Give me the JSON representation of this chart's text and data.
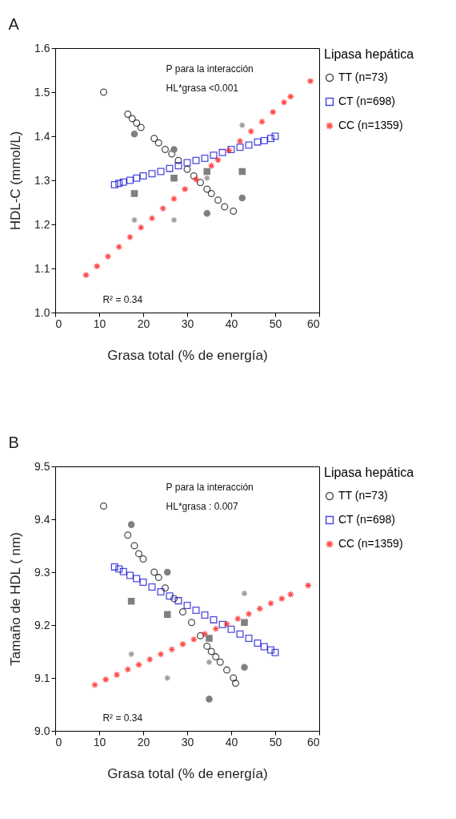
{
  "chart_data": [
    {
      "type": "scatter",
      "title": "A",
      "xlabel": "Grasa total (% de energía)",
      "ylabel": "HDL-C (mmol/L)",
      "legend_title": "Lipasa hepática",
      "annotations": [
        "P para la interacción",
        "HL*grasa <0.001",
        "R² = 0.34"
      ],
      "xlim": [
        0,
        60
      ],
      "xticks": [
        0,
        10,
        20,
        30,
        40,
        50,
        60
      ],
      "ylim": [
        1.0,
        1.6
      ],
      "yticks": [
        {
          "value": 1.0,
          "label": "1.0"
        },
        1.1,
        1.2,
        1.3,
        1.4,
        1.5,
        1.6
      ],
      "grid": false,
      "legend": "right",
      "series": [
        {
          "name": "TT (n=73)",
          "color": "#000000",
          "marker": "circle",
          "x": [
            11,
            16.5,
            17.5,
            18.5,
            19.5,
            22.5,
            23.5,
            25,
            26.5,
            28,
            30,
            31.5,
            33,
            34.5,
            35.5,
            37,
            38.5,
            40.5
          ],
          "values": [
            1.5,
            1.45,
            1.44,
            1.43,
            1.42,
            1.395,
            1.385,
            1.37,
            1.36,
            1.345,
            1.325,
            1.31,
            1.295,
            1.28,
            1.27,
            1.255,
            1.24,
            1.23
          ]
        },
        {
          "name": "CT (n=698)",
          "color": "#0000cc",
          "marker": "square",
          "x": [
            13.5,
            14.5,
            15.5,
            17,
            18.5,
            20,
            22,
            24,
            26,
            28,
            30,
            32,
            34,
            36,
            38,
            40,
            42,
            44,
            46,
            47.5,
            49,
            50
          ],
          "values": [
            1.29,
            1.293,
            1.296,
            1.3,
            1.305,
            1.31,
            1.315,
            1.32,
            1.327,
            1.333,
            1.34,
            1.345,
            1.35,
            1.357,
            1.363,
            1.37,
            1.375,
            1.38,
            1.387,
            1.39,
            1.395,
            1.4
          ]
        },
        {
          "name": "CC (n=1359)",
          "color": "#ff0000",
          "marker": "cross",
          "x": [
            7,
            9.5,
            12,
            14.5,
            17,
            19.5,
            22,
            24.5,
            27,
            29.5,
            32,
            35.5,
            37,
            39.5,
            42,
            44.5,
            47,
            49.5,
            52,
            53.5,
            58
          ],
          "values": [
            1.085,
            1.105,
            1.127,
            1.149,
            1.171,
            1.193,
            1.214,
            1.236,
            1.258,
            1.28,
            1.302,
            1.333,
            1.346,
            1.368,
            1.389,
            1.411,
            1.433,
            1.455,
            1.477,
            1.49,
            1.525
          ]
        },
        {
          "color": "#808080",
          "marker": "circle",
          "x": [
            18,
            27,
            34.5,
            42.5
          ],
          "values": [
            1.405,
            1.37,
            1.225,
            1.26
          ]
        },
        {
          "color": "#808080",
          "marker": "square",
          "x": [
            18,
            27,
            34.5,
            42.5
          ],
          "values": [
            1.27,
            1.305,
            1.32,
            1.32
          ]
        },
        {
          "color": "#a0a0a0",
          "marker": "cross",
          "x": [
            18,
            27,
            34.5,
            42.5
          ],
          "values": [
            1.21,
            1.21,
            1.305,
            1.425
          ]
        }
      ]
    },
    {
      "type": "scatter",
      "title": "B",
      "xlabel": "Grasa total (% de energía)",
      "ylabel": "Tamaño de HDL ( nm)",
      "legend_title": "Lipasa hepática",
      "annotations": [
        "P para la interacción",
        "HL*grasa : 0.007",
        "R² = 0.34"
      ],
      "xlim": [
        0,
        60
      ],
      "xticks": [
        0,
        10,
        20,
        30,
        40,
        50,
        60
      ],
      "ylim": [
        9.0,
        9.5
      ],
      "yticks": [
        {
          "value": 9.0,
          "label": "9.0"
        },
        9.1,
        9.2,
        9.3,
        9.4,
        9.5
      ],
      "grid": false,
      "legend": "right",
      "series": [
        {
          "name": "TT (n=73)",
          "color": "#000000",
          "marker": "circle",
          "x": [
            11,
            16.5,
            18,
            19,
            20,
            22.5,
            23.5,
            25,
            27,
            29,
            31,
            33,
            34.5,
            35.5,
            36.5,
            37.5,
            39,
            40.5,
            41
          ],
          "values": [
            9.425,
            9.37,
            9.35,
            9.335,
            9.325,
            9.3,
            9.29,
            9.27,
            9.25,
            9.225,
            9.205,
            9.18,
            9.16,
            9.15,
            9.14,
            9.13,
            9.115,
            9.1,
            9.09
          ]
        },
        {
          "name": "CT (n=698)",
          "color": "#0000cc",
          "marker": "square",
          "x": [
            13.5,
            14.5,
            15.5,
            17,
            18.5,
            20,
            22,
            24,
            26,
            28,
            30,
            32,
            34,
            36,
            38,
            40,
            42,
            44,
            46,
            47.5,
            49,
            50
          ],
          "values": [
            9.31,
            9.306,
            9.301,
            9.294,
            9.288,
            9.281,
            9.272,
            9.263,
            9.255,
            9.246,
            9.237,
            9.228,
            9.219,
            9.21,
            9.201,
            9.192,
            9.183,
            9.175,
            9.166,
            9.159,
            9.153,
            9.148
          ]
        },
        {
          "name": "CC (n=1359)",
          "color": "#ff0000",
          "marker": "cross",
          "x": [
            9,
            11.5,
            14,
            16.5,
            19,
            21.5,
            24,
            26.5,
            29,
            31.5,
            34,
            36.5,
            39,
            41.5,
            44,
            46.5,
            49,
            51.5,
            53.5,
            57.5
          ],
          "values": [
            9.087,
            9.097,
            9.106,
            9.116,
            9.125,
            9.135,
            9.145,
            9.154,
            9.164,
            9.173,
            9.183,
            9.193,
            9.202,
            9.212,
            9.221,
            9.231,
            9.241,
            9.25,
            9.258,
            9.275
          ]
        },
        {
          "color": "#808080",
          "marker": "circle",
          "x": [
            17.3,
            25.5,
            35,
            43
          ],
          "values": [
            9.39,
            9.3,
            9.06,
            9.12
          ]
        },
        {
          "color": "#808080",
          "marker": "square",
          "x": [
            17.3,
            25.5,
            35,
            43
          ],
          "values": [
            9.245,
            9.22,
            9.175,
            9.205
          ]
        },
        {
          "color": "#a0a0a0",
          "marker": "cross",
          "x": [
            17.3,
            25.5,
            35,
            43
          ],
          "values": [
            9.145,
            9.1,
            9.13,
            9.26
          ]
        }
      ]
    }
  ]
}
